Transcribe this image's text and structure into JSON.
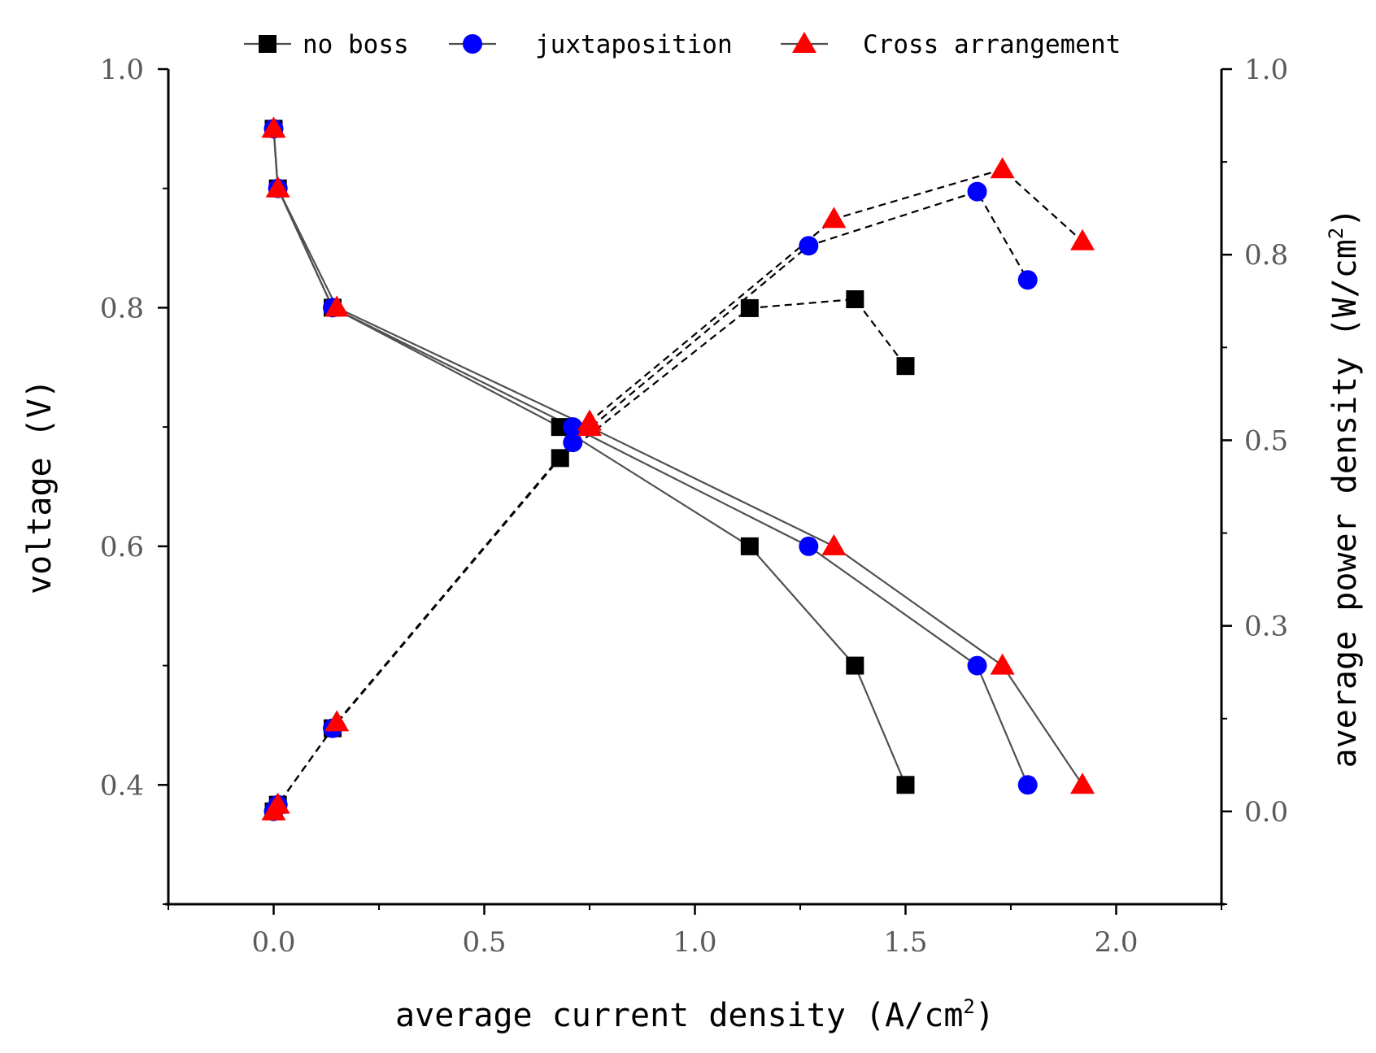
{
  "chart_data": {
    "type": "line",
    "title": "",
    "xlabel": "average current density (A/cm",
    "xlabel_sup": "2",
    "xlabel_close": ")",
    "ylabel": "voltage (V)",
    "ylabel_right": "average power density (W/cm",
    "ylabel_right_sup": "2",
    "ylabel_right_close": ")",
    "xlim": [
      -0.25,
      2.25
    ],
    "ylim": [
      0.3,
      1.0
    ],
    "ylim_right": [
      -0.125,
      1.0
    ],
    "x_ticks": [
      "0.0",
      "0.5",
      "1.0",
      "1.5",
      "2.0"
    ],
    "y_ticks": [
      "0.4",
      "0.6",
      "0.8",
      "1.0"
    ],
    "y_right_ticks": [
      "0.0",
      "0.3",
      "0.5",
      "0.8",
      "1.0"
    ],
    "legend_position": "top",
    "series": [
      {
        "name": "no boss",
        "marker": "square",
        "color": "#000000",
        "current": [
          0.0,
          0.01,
          0.14,
          0.68,
          1.13,
          1.38,
          1.5
        ],
        "voltage": [
          0.95,
          0.9,
          0.8,
          0.7,
          0.6,
          0.5,
          0.4
        ],
        "power": [
          0.0,
          0.009,
          0.112,
          0.476,
          0.678,
          0.69,
          0.6
        ]
      },
      {
        "name": "juxtaposition",
        "marker": "circle",
        "color": "#0000ff",
        "current": [
          0.0,
          0.01,
          0.14,
          0.71,
          1.27,
          1.67,
          1.79
        ],
        "voltage": [
          0.95,
          0.9,
          0.8,
          0.7,
          0.6,
          0.5,
          0.4
        ],
        "power": [
          0.0,
          0.009,
          0.112,
          0.497,
          0.762,
          0.835,
          0.716
        ]
      },
      {
        "name": "Cross arrangement",
        "marker": "triangle",
        "color": "#ff0000",
        "current": [
          0.0,
          0.01,
          0.15,
          0.75,
          1.33,
          1.73,
          1.92
        ],
        "voltage": [
          0.95,
          0.9,
          0.8,
          0.7,
          0.6,
          0.5,
          0.4
        ],
        "power": [
          0.0,
          0.009,
          0.12,
          0.525,
          0.798,
          0.865,
          0.768
        ]
      }
    ]
  }
}
